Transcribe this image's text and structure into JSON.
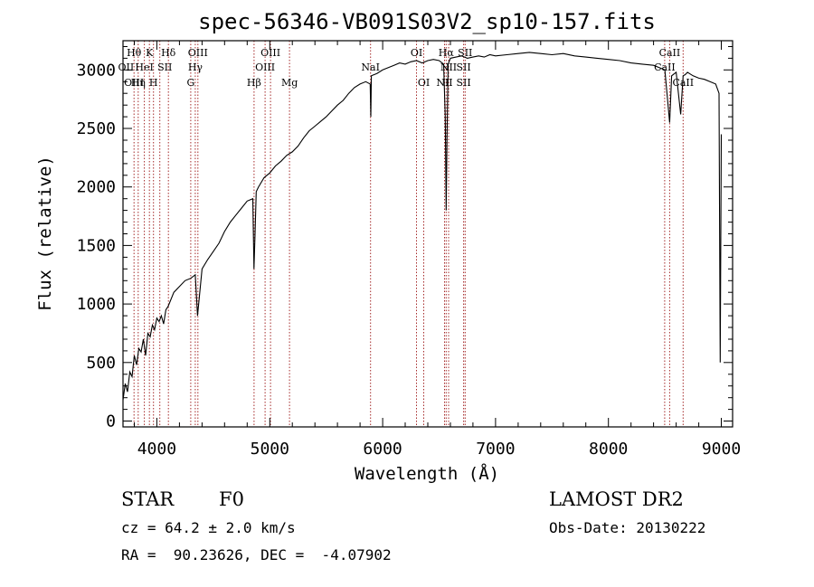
{
  "chart_data": {
    "type": "line",
    "title": "spec-56346-VB091S03V2_sp10-157.fits",
    "xlabel": "Wavelength (Å)",
    "ylabel": "Flux (relative)",
    "xlim": [
      3700,
      9100
    ],
    "ylim": [
      -50,
      3250
    ],
    "x_ticks": [
      4000,
      5000,
      6000,
      7000,
      8000,
      9000
    ],
    "y_ticks": [
      0,
      500,
      1000,
      1500,
      2000,
      2500,
      3000
    ],
    "grid": false,
    "line_color": "#000000",
    "marker_color": "#a52a2a",
    "series": [
      {
        "x": [
          3700,
          3720,
          3740,
          3760,
          3780,
          3800,
          3820,
          3840,
          3860,
          3880,
          3900,
          3920,
          3940,
          3960,
          3980,
          4000,
          4020,
          4040,
          4060,
          4080,
          4100,
          4150,
          4200,
          4250,
          4300,
          4340,
          4360,
          4400,
          4450,
          4500,
          4550,
          4600,
          4650,
          4700,
          4750,
          4800,
          4850,
          4860,
          4870,
          4880,
          4900,
          4950,
          5000,
          5050,
          5100,
          5150,
          5200,
          5250,
          5300,
          5350,
          5400,
          5450,
          5500,
          5550,
          5600,
          5650,
          5700,
          5750,
          5800,
          5850,
          5890,
          5895,
          5900,
          5950,
          6000,
          6050,
          6100,
          6150,
          6200,
          6250,
          6300,
          6350,
          6400,
          6450,
          6500,
          6540,
          6555,
          6563,
          6570,
          6580,
          6600,
          6650,
          6700,
          6750,
          6800,
          6850,
          6900,
          6950,
          7000,
          7100,
          7200,
          7300,
          7400,
          7500,
          7600,
          7700,
          7800,
          7900,
          8000,
          8100,
          8200,
          8300,
          8400,
          8450,
          8500,
          8542,
          8560,
          8600,
          8640,
          8662,
          8680,
          8700,
          8750,
          8800,
          8850,
          8900,
          8950,
          8980,
          8990,
          9000
        ],
        "y": [
          180,
          320,
          250,
          420,
          380,
          560,
          480,
          620,
          590,
          700,
          560,
          750,
          720,
          820,
          780,
          880,
          850,
          900,
          830,
          950,
          980,
          1100,
          1150,
          1200,
          1220,
          1250,
          900,
          1300,
          1380,
          1450,
          1520,
          1620,
          1700,
          1760,
          1820,
          1880,
          1900,
          1300,
          1600,
          1960,
          2000,
          2080,
          2120,
          2180,
          2220,
          2270,
          2300,
          2350,
          2420,
          2480,
          2520,
          2560,
          2600,
          2650,
          2700,
          2740,
          2800,
          2850,
          2880,
          2900,
          2880,
          2600,
          2950,
          2970,
          3000,
          3020,
          3040,
          3060,
          3050,
          3070,
          3080,
          3060,
          3080,
          3090,
          3080,
          3050,
          2600,
          1800,
          2400,
          3050,
          3100,
          3110,
          3120,
          3100,
          3110,
          3120,
          3110,
          3130,
          3120,
          3130,
          3140,
          3150,
          3140,
          3130,
          3140,
          3120,
          3110,
          3100,
          3090,
          3080,
          3060,
          3050,
          3040,
          3020,
          3000,
          2550,
          2950,
          2980,
          2620,
          2950,
          2960,
          2980,
          2950,
          2930,
          2920,
          2900,
          2880,
          2800,
          500,
          2450
        ]
      }
    ],
    "line_markers": {
      "positions": [
        3798,
        3835,
        3889,
        3934,
        3970,
        4026,
        4102,
        4300,
        4340,
        4363,
        4861,
        4959,
        5007,
        5175,
        5893,
        6300,
        6364,
        6548,
        6563,
        6584,
        6717,
        6731,
        8498,
        8542,
        8662
      ],
      "labels": [
        {
          "text": "Hθ",
          "x": 3798,
          "row": 1
        },
        {
          "text": "K",
          "x": 3934,
          "row": 1
        },
        {
          "text": "Hδ",
          "x": 4102,
          "row": 1
        },
        {
          "text": "OIII",
          "x": 4363,
          "row": 1
        },
        {
          "text": "OIII",
          "x": 5007,
          "row": 1
        },
        {
          "text": "OI",
          "x": 6300,
          "row": 1
        },
        {
          "text": "Hα",
          "x": 6563,
          "row": 1
        },
        {
          "text": "SII",
          "x": 6731,
          "row": 1
        },
        {
          "text": "CaII",
          "x": 8542,
          "row": 1
        },
        {
          "text": "OII",
          "x": 3727,
          "row": 2
        },
        {
          "text": "HeI",
          "x": 3889,
          "row": 2
        },
        {
          "text": "SII",
          "x": 4070,
          "row": 2
        },
        {
          "text": "Hγ",
          "x": 4340,
          "row": 2
        },
        {
          "text": "OIII",
          "x": 4959,
          "row": 2
        },
        {
          "text": "NaI",
          "x": 5893,
          "row": 2
        },
        {
          "text": "NII",
          "x": 6584,
          "row": 2
        },
        {
          "text": "SII",
          "x": 6717,
          "row": 2
        },
        {
          "text": "CaII",
          "x": 8498,
          "row": 2
        },
        {
          "text": "OIII",
          "x": 3798,
          "row": 3
        },
        {
          "text": "Hη",
          "x": 3835,
          "row": 3
        },
        {
          "text": "H",
          "x": 3970,
          "row": 3
        },
        {
          "text": "G",
          "x": 4300,
          "row": 3
        },
        {
          "text": "Hβ",
          "x": 4861,
          "row": 3
        },
        {
          "text": "Mg",
          "x": 5175,
          "row": 3
        },
        {
          "text": "OI",
          "x": 6364,
          "row": 3
        },
        {
          "text": "NII",
          "x": 6548,
          "row": 3
        },
        {
          "text": "SII",
          "x": 6717,
          "row": 3
        },
        {
          "text": "CaII",
          "x": 8662,
          "row": 3
        }
      ]
    }
  },
  "info": {
    "object_class": "STAR",
    "subclass": "F0",
    "cz": "cz = 64.2 ± 2.0 km/s",
    "radec": "RA =  90.23626, DEC =  -4.07902",
    "survey": "LAMOST DR2",
    "obs_date": "Obs-Date: 20130222"
  }
}
